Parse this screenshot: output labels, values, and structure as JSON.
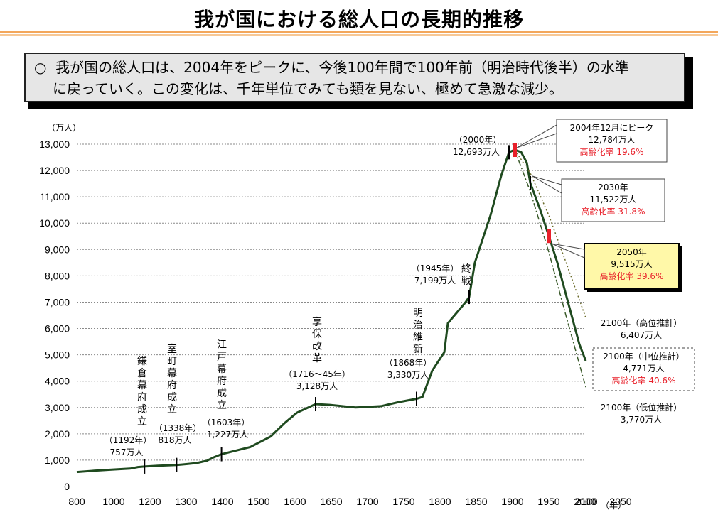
{
  "title": "我が国における総人口の長期的推移",
  "summary": {
    "bullet": "○",
    "line1": "我が国の総人口は、2004年をピークに、今後100年間で100年前（明治時代後半）の水準",
    "line2": "に戻っていく。この変化は、千年単位でみても類を見ない、極めて急激な減少。"
  },
  "chart_data": {
    "type": "line",
    "y_unit": "（万人）",
    "x_unit": "（年）",
    "ylim": [
      0,
      13000
    ],
    "xlim": [
      800,
      2100
    ],
    "yticks": [
      "0",
      "1,000",
      "2,000",
      "3,000",
      "4,000",
      "5,000",
      "6,000",
      "7,000",
      "8,000",
      "9,000",
      "10,000",
      "11,000",
      "12,000",
      "13,000"
    ],
    "xticks": [
      "800",
      "1000",
      "1200",
      "1300",
      "1400",
      "1500",
      "1600",
      "1650",
      "1700",
      "1750",
      "1800",
      "1850",
      "1900",
      "1950",
      "2000",
      "2050",
      "2100"
    ],
    "grid": "horizontal",
    "series": [
      {
        "name": "",
        "style": "solid",
        "points": [
          [
            800,
            550
          ],
          [
            900,
            600
          ],
          [
            1000,
            640
          ],
          [
            1100,
            680
          ],
          [
            1150,
            740
          ],
          [
            1192,
            757
          ],
          [
            1250,
            790
          ],
          [
            1338,
            818
          ],
          [
            1400,
            850
          ],
          [
            1450,
            890
          ],
          [
            1500,
            980
          ],
          [
            1550,
            1100
          ],
          [
            1603,
            1227
          ],
          [
            1650,
            1500
          ],
          [
            1680,
            1900
          ],
          [
            1700,
            2400
          ],
          [
            1716,
            2800
          ],
          [
            1740,
            3128
          ],
          [
            1760,
            3100
          ],
          [
            1800,
            3000
          ],
          [
            1830,
            3050
          ],
          [
            1850,
            3200
          ],
          [
            1868,
            3330
          ],
          [
            1880,
            3400
          ],
          [
            1900,
            4400
          ],
          [
            1920,
            5100
          ],
          [
            1930,
            6200
          ],
          [
            1940,
            7000
          ],
          [
            1945,
            7199
          ],
          [
            1955,
            8500
          ],
          [
            1970,
            10300
          ],
          [
            1985,
            11800
          ],
          [
            2000,
            12693
          ],
          [
            2004,
            12784
          ],
          [
            2010,
            12700
          ],
          [
            2020,
            12300
          ],
          [
            2030,
            11522
          ],
          [
            2040,
            10500
          ],
          [
            2050,
            9515
          ],
          [
            2060,
            8500
          ],
          [
            2070,
            7400
          ],
          [
            2080,
            6300
          ],
          [
            2090,
            5400
          ],
          [
            2100,
            4771
          ]
        ]
      },
      {
        "name": "高位推計",
        "style": "dotted",
        "points": [
          [
            2004,
            12784
          ],
          [
            2030,
            11900
          ],
          [
            2050,
            10300
          ],
          [
            2070,
            8600
          ],
          [
            2100,
            6407
          ]
        ]
      },
      {
        "name": "低位推計",
        "style": "dashdot",
        "points": [
          [
            2004,
            12784
          ],
          [
            2030,
            11200
          ],
          [
            2050,
            8900
          ],
          [
            2070,
            6600
          ],
          [
            2100,
            3770
          ]
        ]
      }
    ],
    "tick_marks": [
      [
        1192,
        757
      ],
      [
        1338,
        818
      ],
      [
        1603,
        1227
      ],
      [
        1740,
        3128
      ],
      [
        1868,
        3330
      ],
      [
        1945,
        7199
      ],
      [
        2000,
        12693
      ]
    ],
    "red_marks": [
      [
        2004,
        12784
      ],
      [
        2050,
        9515
      ]
    ],
    "annotations": {
      "kamakura": {
        "vertical": "鎌倉幕府成立",
        "year": "（1192年）",
        "pop": "757万人"
      },
      "muromachi": {
        "vertical": "室町幕府成立",
        "year": "（1338年）",
        "pop": "818万人"
      },
      "edo": {
        "vertical": "江戸幕府成立",
        "year": "（1603年）",
        "pop": "1,227万人"
      },
      "kyoho": {
        "vertical": "享保改革",
        "year": "（1716～45年）",
        "pop": "3,128万人"
      },
      "meiji": {
        "vertical": "明治維新",
        "year": "（1868年）",
        "pop": "3,330万人"
      },
      "shusen": {
        "vertical": "終戦",
        "year": "（1945年）",
        "pop": "7,199万人"
      },
      "y2000": {
        "year": "（2000年）",
        "pop": "12,693万人"
      }
    },
    "callouts": {
      "peak": {
        "line1": "2004年12月にピーク",
        "line2": "12,784万人",
        "line3": "高齢化率 19.6%"
      },
      "y2030": {
        "line1": "2030年",
        "line2": "11,522万人",
        "line3": "高齢化率 31.8%"
      },
      "y2050": {
        "line1": "2050年",
        "line2": "9,515万人",
        "line3": "高齢化率 39.6%"
      },
      "high": {
        "line1": "2100年（高位推計）",
        "line2": "6,407万人"
      },
      "mid": {
        "line1": "2100年（中位推計）",
        "line2": "4,771万人",
        "line3": "高齢化率 40.6%"
      },
      "low": {
        "line1": "2100年（低位推計）",
        "line2": "3,770万人"
      }
    }
  },
  "colors": {
    "line": "#1f4a1f",
    "red": "#e8202a",
    "highlight": "#fff8a8",
    "rule": "#f3a65a"
  }
}
